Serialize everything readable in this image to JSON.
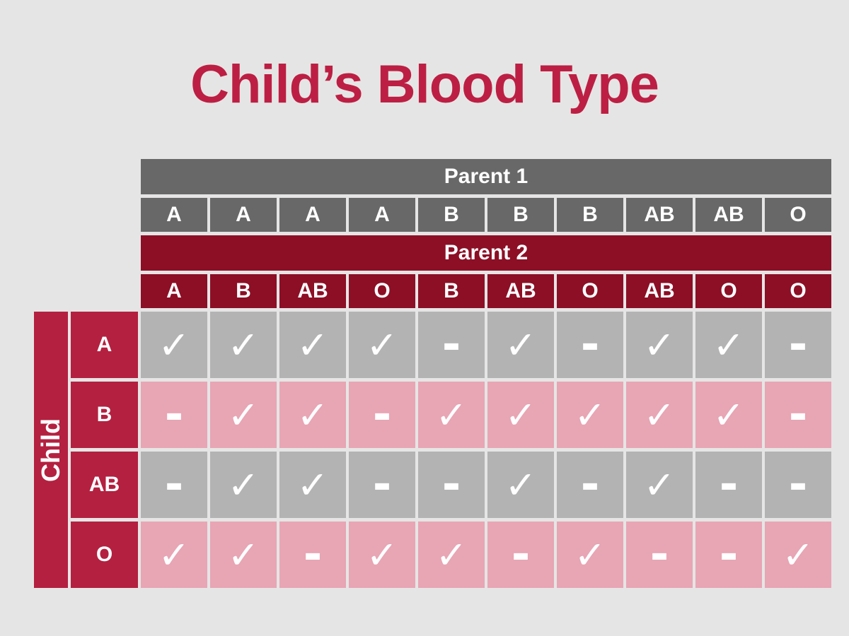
{
  "title": "Child’s Blood Type",
  "colors": {
    "page_background": "#e6e5e5",
    "title_text": "#bc1f43",
    "parent1_fill": "#686868",
    "parent2_fill": "#8c0f26",
    "child_fill": "#b42040",
    "result_gray": "#b4b3b3",
    "result_pink": "#e8a5b4",
    "cell_text": "#ffffff"
  },
  "symbols": {
    "check": "✓",
    "dash": "-"
  },
  "chart_data": {
    "type": "table",
    "title": "Child’s Blood Type",
    "column_groups": [
      {
        "label": "Parent 1",
        "types": [
          "A",
          "A",
          "A",
          "A",
          "B",
          "B",
          "B",
          "AB",
          "AB",
          "O"
        ]
      },
      {
        "label": "Parent 2",
        "types": [
          "A",
          "B",
          "AB",
          "O",
          "B",
          "AB",
          "O",
          "AB",
          "O",
          "O"
        ]
      }
    ],
    "row_group": {
      "label": "Child",
      "types": [
        "A",
        "B",
        "AB",
        "O"
      ]
    },
    "row_shades": [
      "gray",
      "pink",
      "gray",
      "pink"
    ],
    "cells": [
      [
        "check",
        "check",
        "check",
        "check",
        "dash",
        "check",
        "dash",
        "check",
        "check",
        "dash"
      ],
      [
        "dash",
        "check",
        "check",
        "dash",
        "check",
        "check",
        "check",
        "check",
        "check",
        "dash"
      ],
      [
        "dash",
        "check",
        "check",
        "dash",
        "dash",
        "check",
        "dash",
        "check",
        "dash",
        "dash"
      ],
      [
        "check",
        "check",
        "dash",
        "check",
        "check",
        "dash",
        "check",
        "dash",
        "dash",
        "check"
      ]
    ]
  }
}
